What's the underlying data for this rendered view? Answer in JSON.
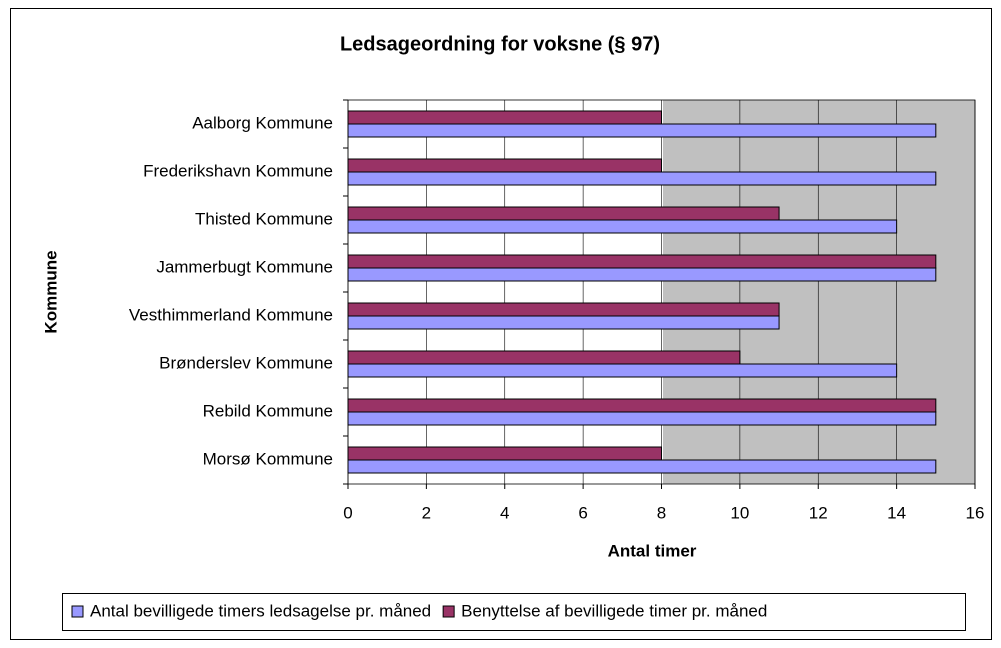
{
  "chart_data": {
    "type": "bar",
    "orientation": "horizontal",
    "title": "Ledsageordning for voksne (§ 97)",
    "x_label": "Antal timer",
    "y_label": "Kommune",
    "categories": [
      "Aalborg Kommune",
      "Frederikshavn Kommune",
      "Thisted Kommune",
      "Jammerbugt Kommune",
      "Vesthimmerland Kommune",
      "Brønderslev Kommune",
      "Rebild Kommune",
      "Morsø Kommune"
    ],
    "series": [
      {
        "name": "Antal bevilligede timers ledsagelse pr. måned",
        "color": "#9999ff",
        "values": [
          15,
          15,
          14,
          15,
          11,
          14,
          15,
          15
        ]
      },
      {
        "name": "Benyttelse af bevilligede timer pr. måned",
        "color": "#993366",
        "values": [
          8,
          8,
          11,
          15,
          11,
          10,
          15,
          8
        ]
      }
    ],
    "xlim": [
      0,
      16
    ],
    "xticks": [
      0,
      2,
      4,
      6,
      8,
      10,
      12,
      14,
      16
    ],
    "grid": true,
    "legend": "bottom"
  }
}
